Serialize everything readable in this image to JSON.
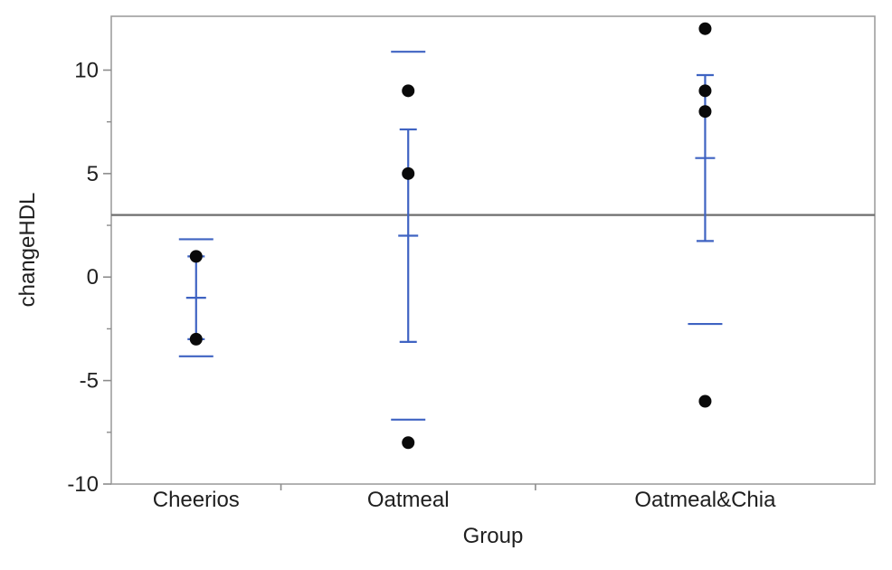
{
  "page": {
    "background": "#ffffff"
  },
  "chart_data": {
    "type": "scatter",
    "chart_style": "oneway-means-plot-with-error-bars",
    "title": "",
    "xlabel": "Group",
    "ylabel": "changeHDL",
    "ylim": [
      -10,
      12.6
    ],
    "yticks_major": [
      10,
      5,
      0,
      -5,
      -10
    ],
    "yticks_minor": [
      7.5,
      2.5,
      -2.5,
      -7.5
    ],
    "grand_mean_line": 3,
    "grid": false,
    "legend": "none",
    "column_width_mode": "proportional-to-n",
    "categories": [
      "Cheerios",
      "Oatmeal",
      "Oatmeal&Chia"
    ],
    "groups": [
      {
        "label": "Cheerios",
        "n": 2,
        "points": [
          1,
          -3
        ],
        "mean": -1,
        "std_err": 2.0,
        "std_dev": 2.828
      },
      {
        "label": "Oatmeal",
        "n": 3,
        "points": [
          9,
          5,
          -8
        ],
        "mean": 2,
        "std_err": 5.132,
        "std_dev": 8.888
      },
      {
        "label": "Oatmeal&Chia",
        "n": 4,
        "points": [
          12,
          9,
          8,
          -6
        ],
        "mean": 5.75,
        "std_err": 4.009,
        "std_dev": 8.016
      }
    ],
    "colors": {
      "error_bar_blue": "#3f63c2",
      "point_black": "#0a0a0a",
      "grand_mean_gray": "#6e6e6e",
      "frame_gray": "#9e9e9e",
      "tick_gray": "#8c8c8c",
      "text": "#1f1f1f",
      "plot_background": "#ffffff"
    }
  }
}
